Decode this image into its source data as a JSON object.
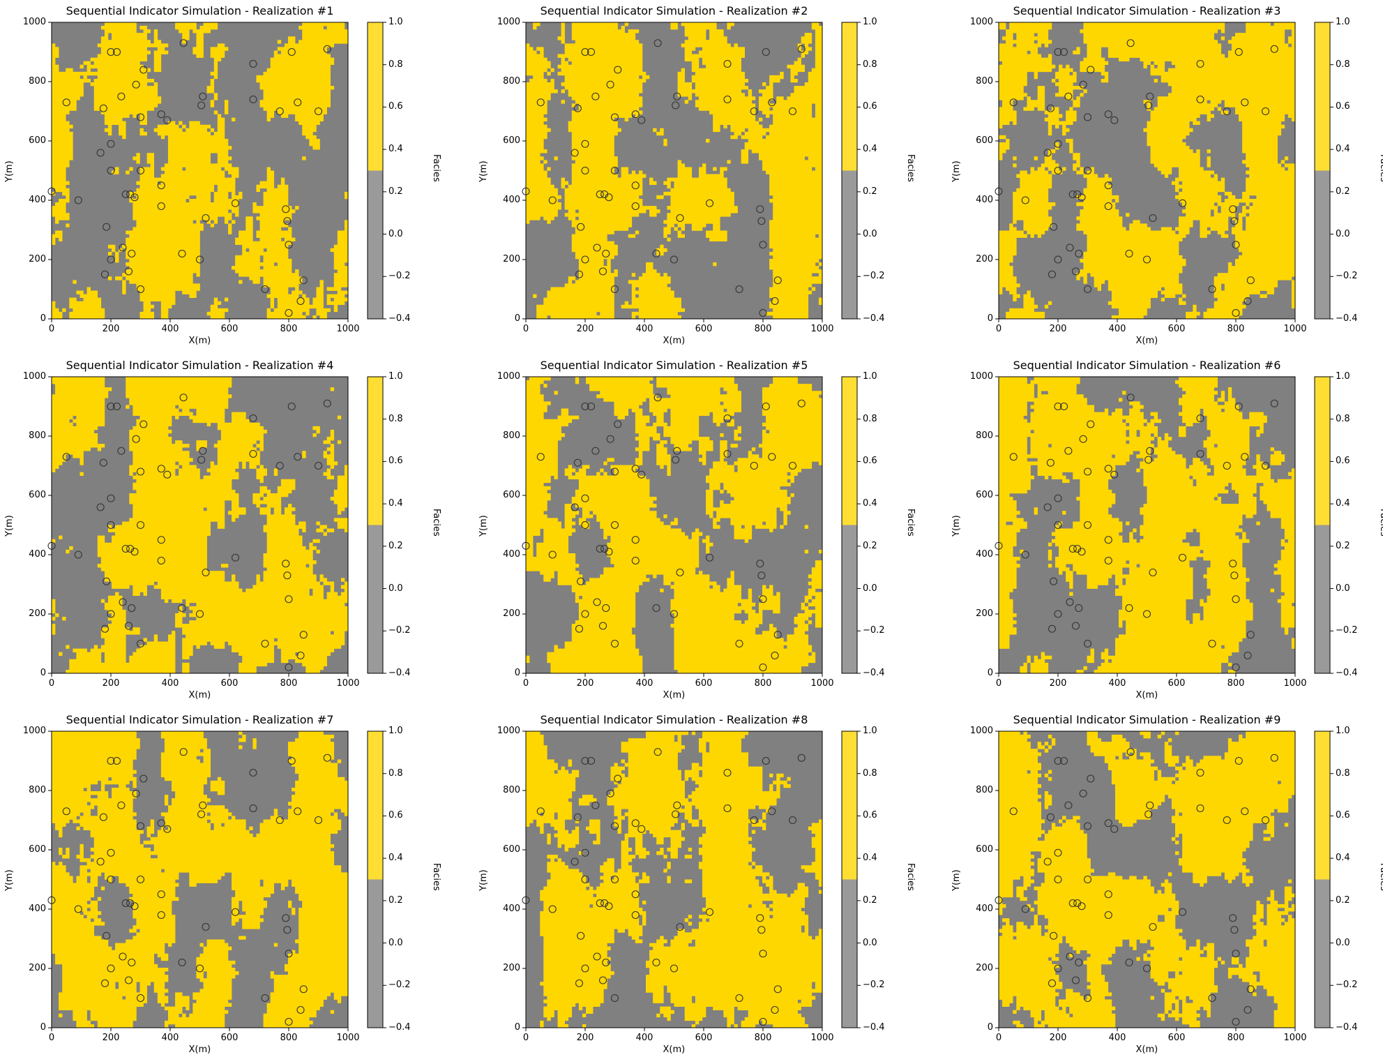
{
  "colors": {
    "facies_0": "#808080",
    "facies_1": "#ffd700",
    "marker_edge": "#333333"
  },
  "colorbar": {
    "label": "Facies",
    "ticks": [
      "1.0",
      "0.8",
      "0.6",
      "0.4",
      "0.2",
      "0.0",
      "−0.2",
      "−0.4"
    ]
  },
  "axes": {
    "xlabel": "X(m)",
    "ylabel": "Y(m)",
    "xticks": [
      "0",
      "200",
      "400",
      "600",
      "800",
      "1000"
    ],
    "yticks": [
      "0",
      "200",
      "400",
      "600",
      "800",
      "1000"
    ]
  },
  "chart_data": {
    "type": "heatmap",
    "xlim": [
      0,
      1000
    ],
    "ylim": [
      0,
      1000
    ],
    "grid": false,
    "colorbar": {
      "label": "Facies",
      "range": [
        -0.4,
        1.0
      ],
      "categories": [
        {
          "value": 0,
          "color": "#808080"
        },
        {
          "value": 1,
          "color": "#ffd700"
        }
      ]
    },
    "wells": [
      {
        "x": 0,
        "y": 430
      },
      {
        "x": 50,
        "y": 730
      },
      {
        "x": 90,
        "y": 400
      },
      {
        "x": 165,
        "y": 560
      },
      {
        "x": 175,
        "y": 710
      },
      {
        "x": 180,
        "y": 150
      },
      {
        "x": 185,
        "y": 310
      },
      {
        "x": 200,
        "y": 200
      },
      {
        "x": 200,
        "y": 500
      },
      {
        "x": 200,
        "y": 590
      },
      {
        "x": 200,
        "y": 900
      },
      {
        "x": 220,
        "y": 900
      },
      {
        "x": 235,
        "y": 750
      },
      {
        "x": 240,
        "y": 240
      },
      {
        "x": 250,
        "y": 420
      },
      {
        "x": 260,
        "y": 160
      },
      {
        "x": 265,
        "y": 420
      },
      {
        "x": 270,
        "y": 220
      },
      {
        "x": 280,
        "y": 410
      },
      {
        "x": 285,
        "y": 790
      },
      {
        "x": 300,
        "y": 500
      },
      {
        "x": 300,
        "y": 680
      },
      {
        "x": 300,
        "y": 100
      },
      {
        "x": 310,
        "y": 840
      },
      {
        "x": 370,
        "y": 380
      },
      {
        "x": 370,
        "y": 450
      },
      {
        "x": 370,
        "y": 690
      },
      {
        "x": 390,
        "y": 670
      },
      {
        "x": 440,
        "y": 220
      },
      {
        "x": 445,
        "y": 930
      },
      {
        "x": 500,
        "y": 200
      },
      {
        "x": 505,
        "y": 720
      },
      {
        "x": 510,
        "y": 750
      },
      {
        "x": 520,
        "y": 340
      },
      {
        "x": 620,
        "y": 390
      },
      {
        "x": 680,
        "y": 860
      },
      {
        "x": 680,
        "y": 740
      },
      {
        "x": 720,
        "y": 100
      },
      {
        "x": 770,
        "y": 700
      },
      {
        "x": 790,
        "y": 370
      },
      {
        "x": 795,
        "y": 330
      },
      {
        "x": 800,
        "y": 20
      },
      {
        "x": 800,
        "y": 250
      },
      {
        "x": 810,
        "y": 900
      },
      {
        "x": 830,
        "y": 730
      },
      {
        "x": 840,
        "y": 60
      },
      {
        "x": 850,
        "y": 130
      },
      {
        "x": 900,
        "y": 700
      },
      {
        "x": 930,
        "y": 910
      }
    ],
    "realizations": [
      {
        "title": "Sequential Indicator Simulation - Realization #1"
      },
      {
        "title": "Sequential Indicator Simulation - Realization #2"
      },
      {
        "title": "Sequential Indicator Simulation - Realization #3"
      },
      {
        "title": "Sequential Indicator Simulation - Realization #4"
      },
      {
        "title": "Sequential Indicator Simulation - Realization #5"
      },
      {
        "title": "Sequential Indicator Simulation - Realization #6"
      },
      {
        "title": "Sequential Indicator Simulation - Realization #7"
      },
      {
        "title": "Sequential Indicator Simulation - Realization #8"
      },
      {
        "title": "Sequential Indicator Simulation - Realization #9"
      }
    ]
  }
}
